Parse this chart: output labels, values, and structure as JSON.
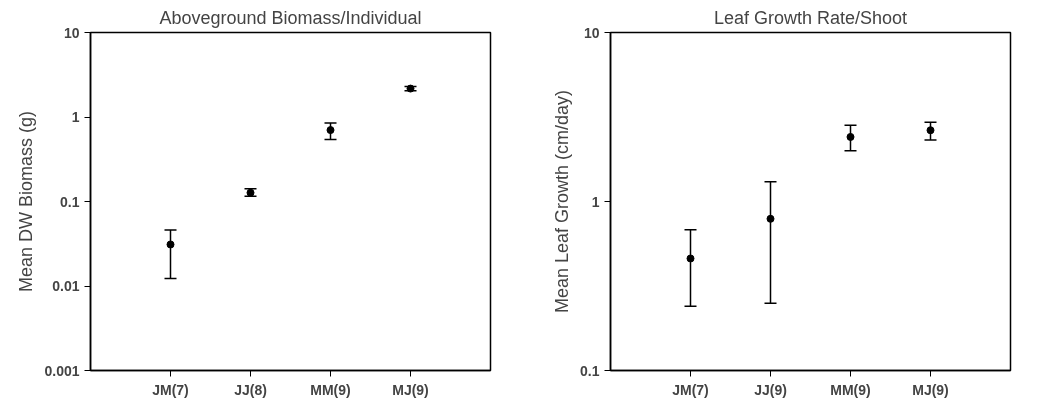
{
  "chart_data": [
    {
      "type": "scatter",
      "title": "Aboveground Biomass/Individual",
      "ylabel": "Mean DW Biomass (g)",
      "categories": [
        "JM(7)",
        "JJ(8)",
        "MM(9)",
        "MJ(9)"
      ],
      "values": [
        0.031,
        0.127,
        0.7,
        2.17
      ],
      "errors": [
        [
          0.0123,
          0.046
        ],
        [
          0.115,
          0.142
        ],
        [
          0.54,
          0.85
        ],
        [
          2.05,
          2.3
        ]
      ],
      "log": "y",
      "ylim": [
        0.001,
        10
      ],
      "yticks": [
        0.001,
        0.01,
        0.1,
        1,
        10
      ],
      "marker": "circle",
      "color": "#000000",
      "grid": false
    },
    {
      "type": "scatter",
      "title": "Leaf Growth Rate/Shoot",
      "ylabel": "Mean Leaf Growth (cm/day)",
      "categories": [
        "JM(7)",
        "JJ(9)",
        "MM(9)",
        "MJ(9)"
      ],
      "values": [
        0.46,
        0.79,
        2.41,
        2.64
      ],
      "errors": [
        [
          0.24,
          0.68
        ],
        [
          0.25,
          1.31
        ],
        [
          2.0,
          2.83
        ],
        [
          2.31,
          2.94
        ]
      ],
      "log": "y",
      "ylim": [
        0.1,
        10
      ],
      "yticks": [
        0.1,
        1,
        10
      ],
      "marker": "circle",
      "color": "#000000",
      "grid": false
    }
  ]
}
